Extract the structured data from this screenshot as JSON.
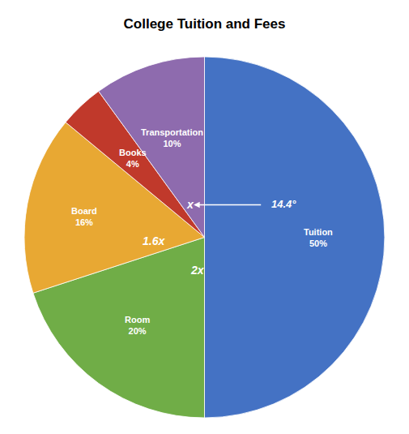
{
  "chart_data": {
    "type": "pie",
    "title": "College Tuition and Fees",
    "categories": [
      "Tuition",
      "Room",
      "Board",
      "Books",
      "Transportation"
    ],
    "values": [
      50,
      20,
      16,
      4,
      10
    ],
    "value_labels": [
      "50%",
      "20%",
      "16%",
      "4%",
      "10%"
    ],
    "colors": [
      "#4472C4",
      "#70AD47",
      "#E8A833",
      "#C0392B",
      "#8E6BAE"
    ],
    "data_labels": true,
    "annotations": [
      "2x",
      "1.6x",
      "x",
      "14.4°"
    ]
  }
}
